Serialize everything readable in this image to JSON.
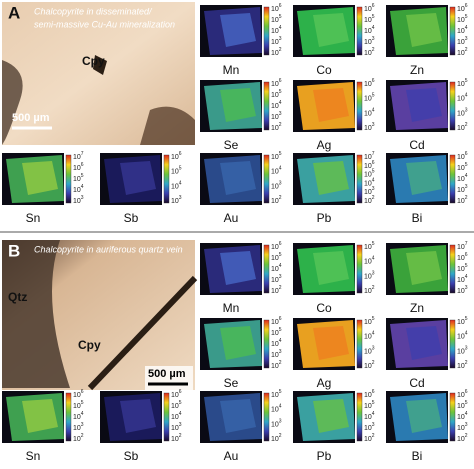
{
  "panels": [
    {
      "letter": "A",
      "caption": [
        "Chalcopyrite in disseminated/",
        "semi-massive Cu-Au mineralization"
      ],
      "labels": [
        "Cpy"
      ],
      "scale_bar": "500 µm",
      "colorbar_base": "10",
      "maps": [
        {
          "element": "Mn",
          "exponents": [
            6,
            5,
            4,
            3,
            2
          ]
        },
        {
          "element": "Co",
          "exponents": [
            6,
            5,
            4,
            3,
            2
          ]
        },
        {
          "element": "Zn",
          "exponents": [
            6,
            5,
            4,
            3,
            2
          ]
        },
        {
          "element": "Se",
          "exponents": [
            6,
            5,
            4,
            3,
            2
          ]
        },
        {
          "element": "Ag",
          "exponents": [
            6,
            5,
            4,
            3
          ]
        },
        {
          "element": "Cd",
          "exponents": [
            5,
            4,
            3,
            2
          ]
        },
        {
          "element": "Sn",
          "exponents": [
            7,
            6,
            5,
            4,
            3
          ]
        },
        {
          "element": "Sb",
          "exponents": [
            6,
            5,
            4,
            3
          ]
        },
        {
          "element": "Au",
          "exponents": [
            5,
            4,
            3,
            2
          ]
        },
        {
          "element": "Pb",
          "exponents": [
            7,
            6,
            5,
            4,
            3,
            2
          ]
        },
        {
          "element": "Bi",
          "exponents": [
            6,
            5,
            4,
            3,
            2
          ]
        }
      ]
    },
    {
      "letter": "B",
      "caption": [
        "Chalcopyrite in  auriferous quartz vein"
      ],
      "labels": [
        "Qtz",
        "Cpy"
      ],
      "scale_bar": "500 µm",
      "colorbar_base": "10",
      "maps": [
        {
          "element": "Mn",
          "exponents": [
            6,
            5,
            4,
            3,
            2
          ]
        },
        {
          "element": "Co",
          "exponents": [
            5,
            4,
            3,
            2
          ]
        },
        {
          "element": "Zn",
          "exponents": [
            7,
            6,
            5,
            4,
            3
          ]
        },
        {
          "element": "Se",
          "exponents": [
            6,
            5,
            4,
            3,
            2
          ]
        },
        {
          "element": "Ag",
          "exponents": [
            5,
            4,
            3,
            2
          ]
        },
        {
          "element": "Cd",
          "exponents": [
            5,
            4,
            3,
            2
          ]
        },
        {
          "element": "Sn",
          "exponents": [
            6,
            5,
            4,
            3,
            2
          ]
        },
        {
          "element": "Sb",
          "exponents": [
            6,
            5,
            4,
            3,
            2
          ]
        },
        {
          "element": "Au",
          "exponents": [
            5,
            4,
            3,
            2
          ]
        },
        {
          "element": "Pb",
          "exponents": [
            6,
            5,
            4,
            3,
            2
          ]
        },
        {
          "element": "Bi",
          "exponents": [
            6,
            5,
            4,
            3,
            2
          ]
        }
      ]
    }
  ]
}
